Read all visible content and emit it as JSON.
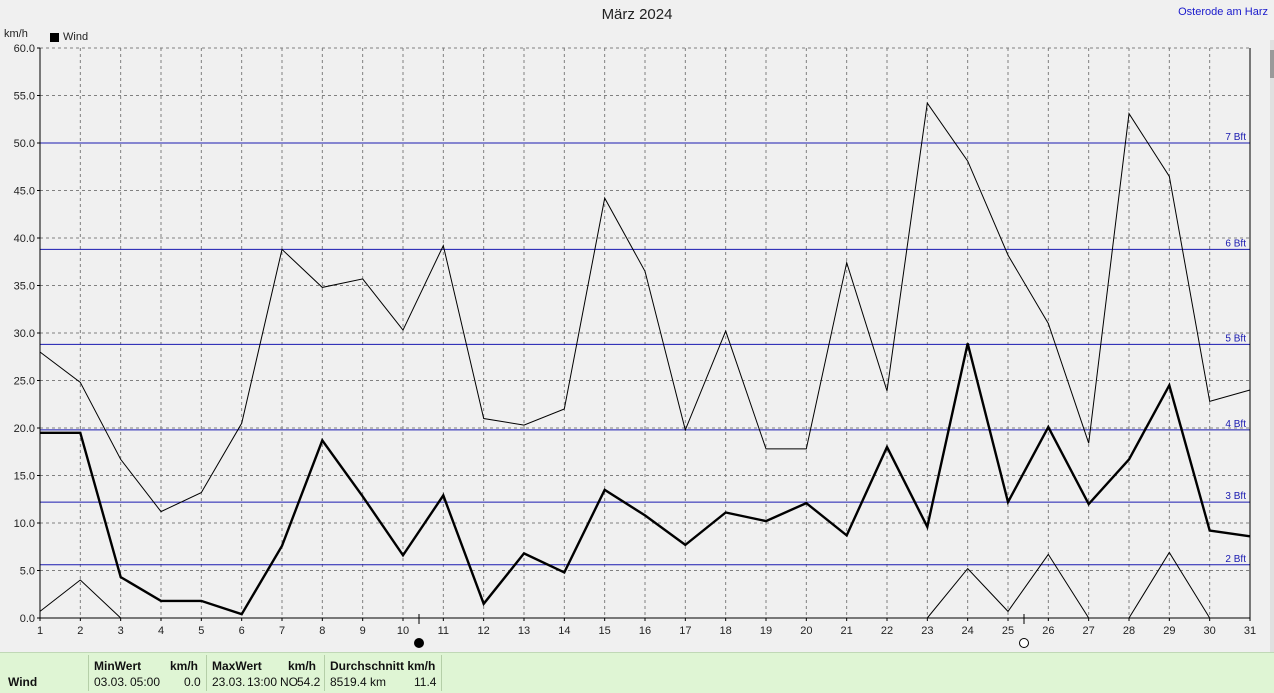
{
  "header": {
    "title": "März 2024",
    "location": "Osterode am Harz",
    "unit": "km/h",
    "legend_label": "Wind"
  },
  "chart_data": {
    "type": "line",
    "title": "März 2024",
    "ylabel": "km/h",
    "xlabel": "",
    "x": [
      1,
      2,
      3,
      4,
      5,
      6,
      7,
      8,
      9,
      10,
      11,
      12,
      13,
      14,
      15,
      16,
      17,
      18,
      19,
      20,
      21,
      22,
      23,
      24,
      25,
      26,
      27,
      28,
      29,
      30,
      31
    ],
    "ylim": [
      0,
      60
    ],
    "yticks": [
      "0.0",
      "5.0",
      "10.0",
      "15.0",
      "20.0",
      "25.0",
      "30.0",
      "35.0",
      "40.0",
      "45.0",
      "50.0",
      "55.0",
      "60.0"
    ],
    "grid": true,
    "legend": "top-left",
    "series": [
      {
        "name": "Wind",
        "style": "bold",
        "values": [
          19.5,
          19.5,
          4.3,
          1.8,
          1.8,
          0.4,
          7.6,
          18.7,
          12.8,
          6.6,
          12.9,
          1.5,
          6.8,
          4.8,
          13.5,
          10.8,
          7.7,
          11.1,
          10.2,
          12.1,
          8.7,
          18.0,
          9.6,
          28.9,
          12.2,
          20.1,
          12.0,
          16.7,
          24.5,
          9.2,
          8.6
        ]
      },
      {
        "style": "max",
        "values": [
          28.0,
          24.8,
          16.7,
          11.2,
          13.2,
          20.5,
          38.8,
          34.8,
          35.7,
          30.3,
          39.2,
          21.0,
          20.3,
          22.0,
          44.2,
          36.5,
          19.8,
          30.2,
          17.8,
          17.8,
          37.4,
          23.9,
          54.2,
          48.1,
          38.2,
          31.0,
          18.4,
          53.1,
          46.5,
          22.8,
          24.0
        ]
      },
      {
        "style": "min",
        "values": [
          0.7,
          4.0,
          0.0,
          null,
          null,
          null,
          null,
          null,
          null,
          null,
          null,
          null,
          null,
          null,
          null,
          null,
          null,
          null,
          null,
          null,
          null,
          null,
          0.0,
          5.2,
          0.7,
          6.7,
          0.0,
          0.0,
          6.9,
          0.0,
          null
        ]
      }
    ],
    "beaufort_lines": [
      {
        "label": "2 Bft",
        "value": 5.6
      },
      {
        "label": "3 Bft",
        "value": 12.2
      },
      {
        "label": "4 Bft",
        "value": 19.8
      },
      {
        "label": "5 Bft",
        "value": 28.8
      },
      {
        "label": "6 Bft",
        "value": 38.8
      },
      {
        "label": "7 Bft",
        "value": 50.0
      }
    ],
    "moon_phases": [
      {
        "day": 10,
        "phase": "new"
      },
      {
        "day": 25,
        "phase": "full"
      }
    ],
    "colors": {
      "series": "#000000",
      "beaufort": "#1a1ab0",
      "grid": "#808080",
      "plot_bg": "#f0f0f0"
    }
  },
  "stats": {
    "row_label": "Wind",
    "min_header": "MinWert",
    "min_unit": "km/h",
    "min_date": "03.03.",
    "min_time": "05:00",
    "min_value": "0.0",
    "max_header": "MaxWert",
    "max_unit": "km/h",
    "max_date": "23.03.",
    "max_time": "13:00",
    "max_dir": "NO",
    "max_value": "54.2",
    "avg_header": "Durchschnitt km/h",
    "avg_distance": "8519.4 km",
    "avg_value": "11.4"
  }
}
